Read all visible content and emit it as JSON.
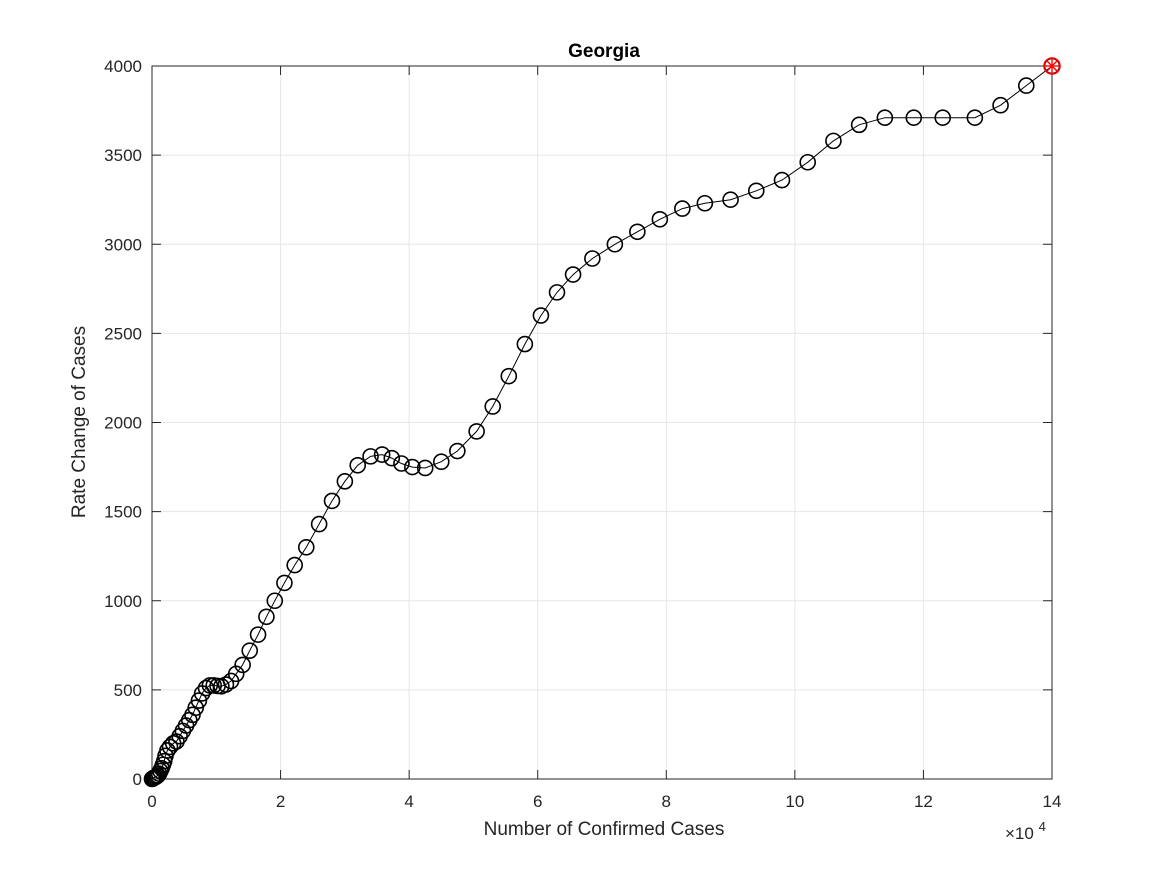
{
  "chart_data": {
    "type": "scatter",
    "title": "Georgia",
    "xlabel": "Number of Confirmed Cases",
    "ylabel": "Rate Change of Cases",
    "x_exponent_base": "×10",
    "x_exponent_power": "4",
    "xlim": [
      0,
      140000
    ],
    "ylim": [
      0,
      4000
    ],
    "x_ticks": [
      0,
      20000,
      40000,
      60000,
      80000,
      100000,
      120000,
      140000
    ],
    "x_tick_labels": [
      "0",
      "2",
      "4",
      "6",
      "8",
      "10",
      "12",
      "14"
    ],
    "y_ticks": [
      0,
      500,
      1000,
      1500,
      2000,
      2500,
      3000,
      3500,
      4000
    ],
    "y_tick_labels": [
      "0",
      "500",
      "1000",
      "1500",
      "2000",
      "2500",
      "3000",
      "3500",
      "4000"
    ],
    "grid": true,
    "line_color": "#000000",
    "marker": "circle",
    "highlight_color": "#ff0000",
    "series": [
      {
        "points": [
          [
            0,
            0
          ],
          [
            100,
            2
          ],
          [
            200,
            5
          ],
          [
            350,
            8
          ],
          [
            500,
            10
          ],
          [
            700,
            15
          ],
          [
            900,
            20
          ],
          [
            1100,
            30
          ],
          [
            1300,
            45
          ],
          [
            1500,
            60
          ],
          [
            1700,
            80
          ],
          [
            1900,
            100
          ],
          [
            2100,
            130
          ],
          [
            2400,
            160
          ],
          [
            2800,
            180
          ],
          [
            3300,
            200
          ],
          [
            3800,
            210
          ],
          [
            4300,
            240
          ],
          [
            4800,
            270
          ],
          [
            5300,
            300
          ],
          [
            5800,
            330
          ],
          [
            6300,
            360
          ],
          [
            6800,
            400
          ],
          [
            7300,
            440
          ],
          [
            7800,
            480
          ],
          [
            8400,
            510
          ],
          [
            9000,
            525
          ],
          [
            9600,
            525
          ],
          [
            10200,
            522
          ],
          [
            10800,
            520
          ],
          [
            11500,
            530
          ],
          [
            12300,
            550
          ],
          [
            13100,
            590
          ],
          [
            14100,
            640
          ],
          [
            15200,
            720
          ],
          [
            16500,
            810
          ],
          [
            17800,
            910
          ],
          [
            19100,
            1000
          ],
          [
            20600,
            1100
          ],
          [
            22200,
            1200
          ],
          [
            24000,
            1300
          ],
          [
            26000,
            1430
          ],
          [
            28000,
            1560
          ],
          [
            30000,
            1670
          ],
          [
            32000,
            1760
          ],
          [
            34000,
            1810
          ],
          [
            35800,
            1820
          ],
          [
            37300,
            1800
          ],
          [
            38800,
            1770
          ],
          [
            40500,
            1750
          ],
          [
            42500,
            1745
          ],
          [
            45000,
            1780
          ],
          [
            47500,
            1840
          ],
          [
            50500,
            1950
          ],
          [
            53000,
            2090
          ],
          [
            55500,
            2260
          ],
          [
            58000,
            2440
          ],
          [
            60500,
            2600
          ],
          [
            63000,
            2730
          ],
          [
            65500,
            2830
          ],
          [
            68500,
            2920
          ],
          [
            72000,
            3000
          ],
          [
            75500,
            3070
          ],
          [
            79000,
            3140
          ],
          [
            82500,
            3200
          ],
          [
            86000,
            3230
          ],
          [
            90000,
            3250
          ],
          [
            94000,
            3300
          ],
          [
            98000,
            3360
          ],
          [
            102000,
            3460
          ],
          [
            106000,
            3580
          ],
          [
            110000,
            3670
          ],
          [
            114000,
            3710
          ],
          [
            118500,
            3710
          ],
          [
            123000,
            3710
          ],
          [
            128000,
            3710
          ],
          [
            132000,
            3780
          ],
          [
            136000,
            3890
          ],
          [
            140000,
            4000
          ]
        ]
      }
    ],
    "highlight_point": [
      140000,
      4000
    ]
  }
}
